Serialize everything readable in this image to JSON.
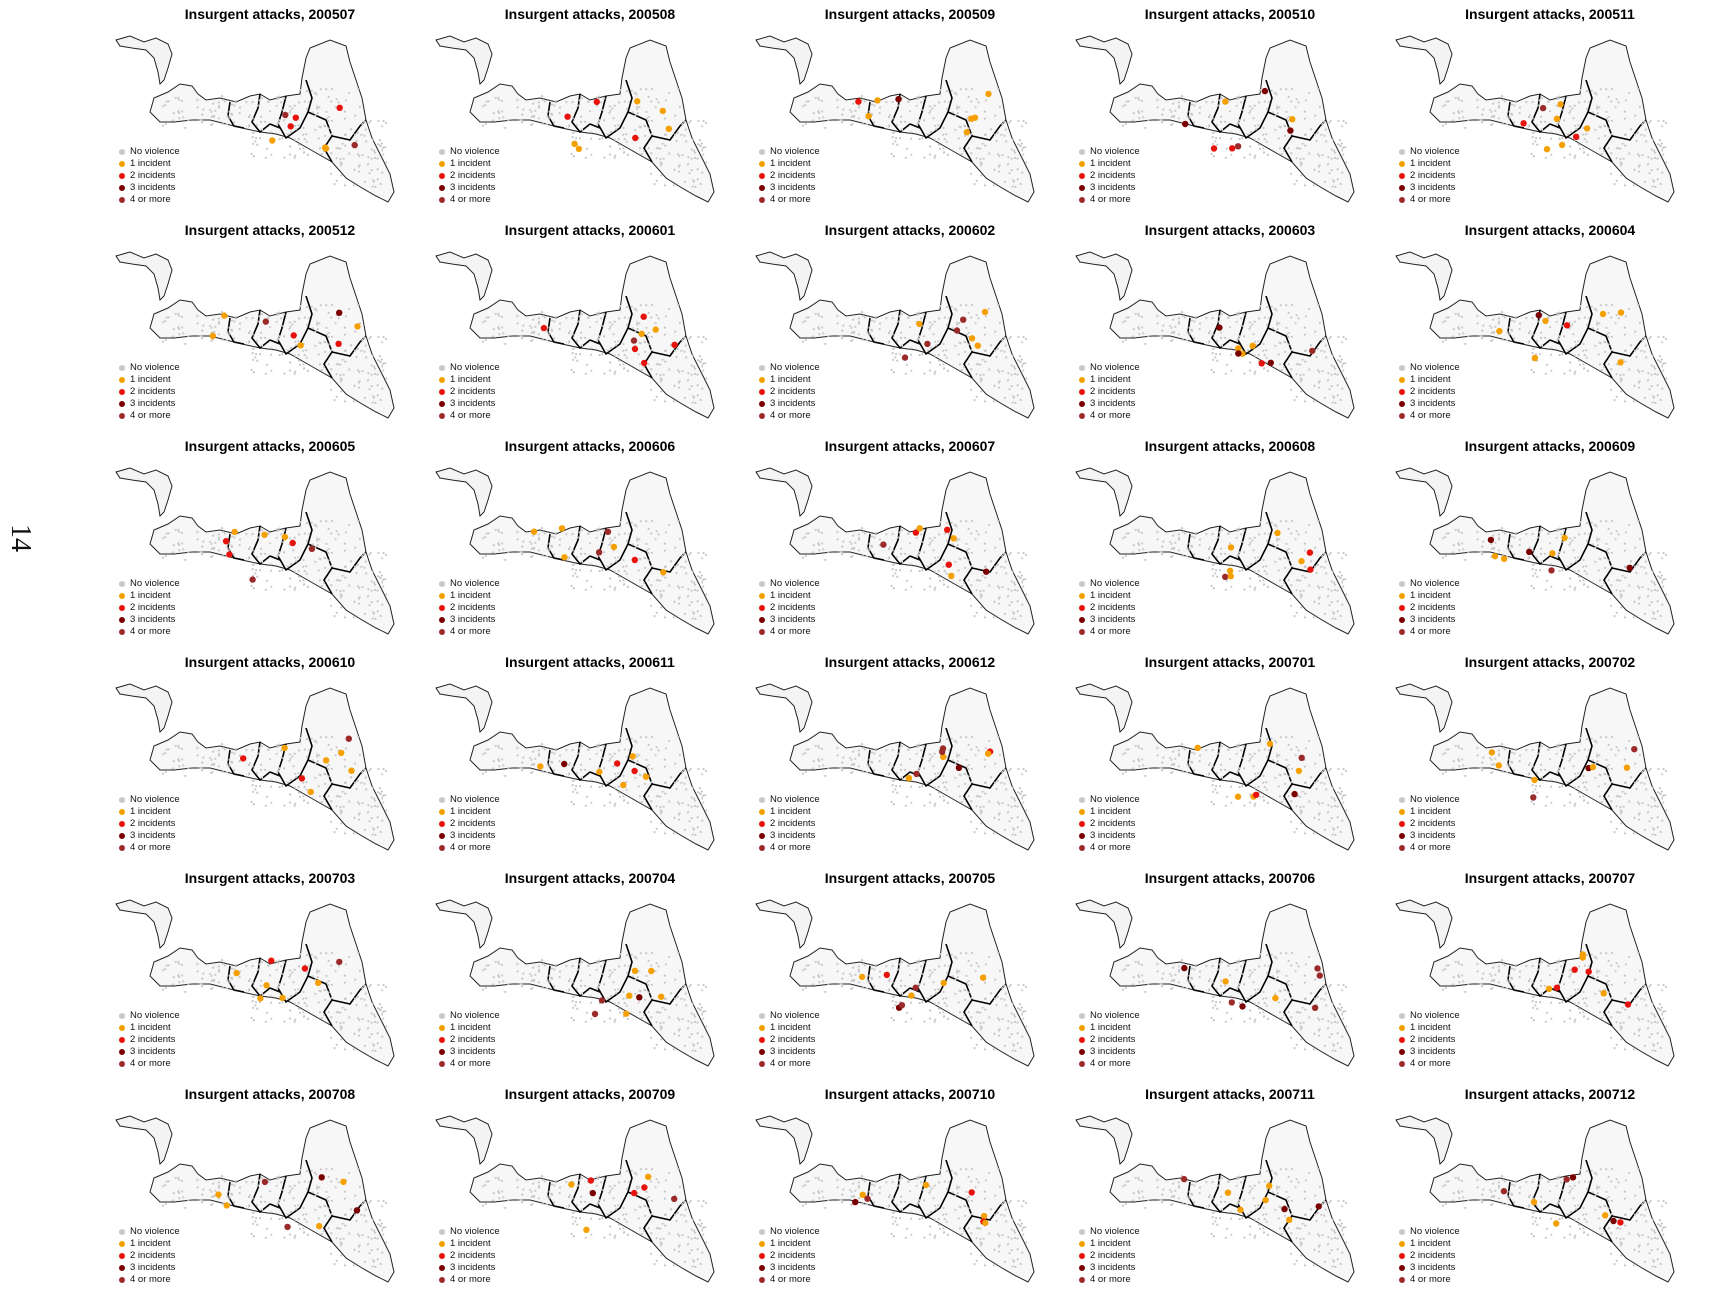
{
  "page_number": "14",
  "legend": {
    "items": [
      {
        "label": "No violence",
        "color": "#c8c8c8"
      },
      {
        "label": "1 incident",
        "color": "#f5a000"
      },
      {
        "label": "2 incidents",
        "color": "#e8120c"
      },
      {
        "label": "3 incidents",
        "color": "#7a0000"
      },
      {
        "label": "4 or more",
        "color": "#9b2a2a"
      }
    ]
  },
  "panels": [
    {
      "title": "Insurgent attacks, 200507",
      "month": "200507"
    },
    {
      "title": "Insurgent attacks, 200508",
      "month": "200508"
    },
    {
      "title": "Insurgent attacks, 200509",
      "month": "200509"
    },
    {
      "title": "Insurgent attacks, 200510",
      "month": "200510"
    },
    {
      "title": "Insurgent attacks, 200511",
      "month": "200511"
    },
    {
      "title": "Insurgent attacks, 200512",
      "month": "200512"
    },
    {
      "title": "Insurgent attacks, 200601",
      "month": "200601"
    },
    {
      "title": "Insurgent attacks, 200602",
      "month": "200602"
    },
    {
      "title": "Insurgent attacks, 200603",
      "month": "200603"
    },
    {
      "title": "Insurgent attacks, 200604",
      "month": "200604"
    },
    {
      "title": "Insurgent attacks, 200605",
      "month": "200605"
    },
    {
      "title": "Insurgent attacks, 200606",
      "month": "200606"
    },
    {
      "title": "Insurgent attacks, 200607",
      "month": "200607"
    },
    {
      "title": "Insurgent attacks, 200608",
      "month": "200608"
    },
    {
      "title": "Insurgent attacks, 200609",
      "month": "200609"
    },
    {
      "title": "Insurgent attacks, 200610",
      "month": "200610"
    },
    {
      "title": "Insurgent attacks, 200611",
      "month": "200611"
    },
    {
      "title": "Insurgent attacks, 200612",
      "month": "200612"
    },
    {
      "title": "Insurgent attacks, 200701",
      "month": "200701"
    },
    {
      "title": "Insurgent attacks, 200702",
      "month": "200702"
    },
    {
      "title": "Insurgent attacks, 200703",
      "month": "200703"
    },
    {
      "title": "Insurgent attacks, 200704",
      "month": "200704"
    },
    {
      "title": "Insurgent attacks, 200705",
      "month": "200705"
    },
    {
      "title": "Insurgent attacks, 200706",
      "month": "200706"
    },
    {
      "title": "Insurgent attacks, 200707",
      "month": "200707"
    },
    {
      "title": "Insurgent attacks, 200708",
      "month": "200708"
    },
    {
      "title": "Insurgent attacks, 200709",
      "month": "200709"
    },
    {
      "title": "Insurgent attacks, 200710",
      "month": "200710"
    },
    {
      "title": "Insurgent attacks, 200711",
      "month": "200711"
    },
    {
      "title": "Insurgent attacks, 200712",
      "month": "200712"
    }
  ]
}
